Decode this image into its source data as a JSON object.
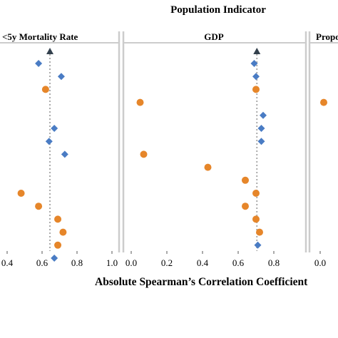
{
  "title": "Population Indicator",
  "xlabel": "Absolute Spearman’s Correlation Coefficient",
  "colors": {
    "diamond": "#4a7cc4",
    "circle": "#e6862a",
    "reference": "#aaaaaa",
    "marker": "#33404d",
    "panel_border": "#cccccc"
  },
  "chart_data": [
    {
      "type": "scatter",
      "panel_title": "<5y Mortality Rate",
      "xlim": [
        0.4,
        1.0
      ],
      "ticks": [
        "0.4",
        "0.6",
        "0.8",
        "1.0"
      ],
      "tick_values": [
        0.4,
        0.6,
        0.8,
        1.0
      ],
      "reference_value": 0.645,
      "rows": 16,
      "points": [
        {
          "row": 0,
          "shape": "diamond",
          "x": 0.58
        },
        {
          "row": 1,
          "shape": "diamond",
          "x": 0.71
        },
        {
          "row": 2,
          "shape": "circle",
          "x": 0.62
        },
        {
          "row": 5,
          "shape": "diamond",
          "x": 0.67
        },
        {
          "row": 6,
          "shape": "diamond",
          "x": 0.64
        },
        {
          "row": 7,
          "shape": "diamond",
          "x": 0.73
        },
        {
          "row": 10,
          "shape": "circle",
          "x": 0.48
        },
        {
          "row": 11,
          "shape": "circle",
          "x": 0.58
        },
        {
          "row": 12,
          "shape": "circle",
          "x": 0.69
        },
        {
          "row": 13,
          "shape": "circle",
          "x": 0.72
        },
        {
          "row": 14,
          "shape": "circle",
          "x": 0.69
        },
        {
          "row": 15,
          "shape": "diamond",
          "x": 0.67
        }
      ]
    },
    {
      "type": "scatter",
      "panel_title": "GDP",
      "xlim": [
        0.0,
        0.85
      ],
      "ticks": [
        "0.0",
        "0.2",
        "0.4",
        "0.6",
        "0.8"
      ],
      "tick_values": [
        0.0,
        0.2,
        0.4,
        0.6,
        0.8
      ],
      "reference_value": 0.705,
      "rows": 16,
      "points": [
        {
          "row": 0,
          "shape": "diamond",
          "x": 0.69
        },
        {
          "row": 1,
          "shape": "diamond",
          "x": 0.7
        },
        {
          "row": 2,
          "shape": "circle",
          "x": 0.7
        },
        {
          "row": 3,
          "shape": "circle",
          "x": 0.05
        },
        {
          "row": 4,
          "shape": "diamond",
          "x": 0.74
        },
        {
          "row": 5,
          "shape": "diamond",
          "x": 0.73
        },
        {
          "row": 6,
          "shape": "diamond",
          "x": 0.73
        },
        {
          "row": 7,
          "shape": "circle",
          "x": 0.07
        },
        {
          "row": 8,
          "shape": "circle",
          "x": 0.43
        },
        {
          "row": 9,
          "shape": "circle",
          "x": 0.64
        },
        {
          "row": 10,
          "shape": "circle",
          "x": 0.7
        },
        {
          "row": 11,
          "shape": "circle",
          "x": 0.64
        },
        {
          "row": 12,
          "shape": "circle",
          "x": 0.7
        },
        {
          "row": 13,
          "shape": "circle",
          "x": 0.72
        },
        {
          "row": 14,
          "shape": "diamond",
          "x": 0.71
        }
      ]
    },
    {
      "type": "scatter",
      "panel_title": "Propo",
      "xlim": [
        0.0,
        0.85
      ],
      "ticks": [
        "0.0"
      ],
      "tick_values": [
        0.0
      ],
      "rows": 16,
      "points": [
        {
          "row": 3,
          "shape": "circle",
          "x": 0.02
        }
      ]
    }
  ]
}
